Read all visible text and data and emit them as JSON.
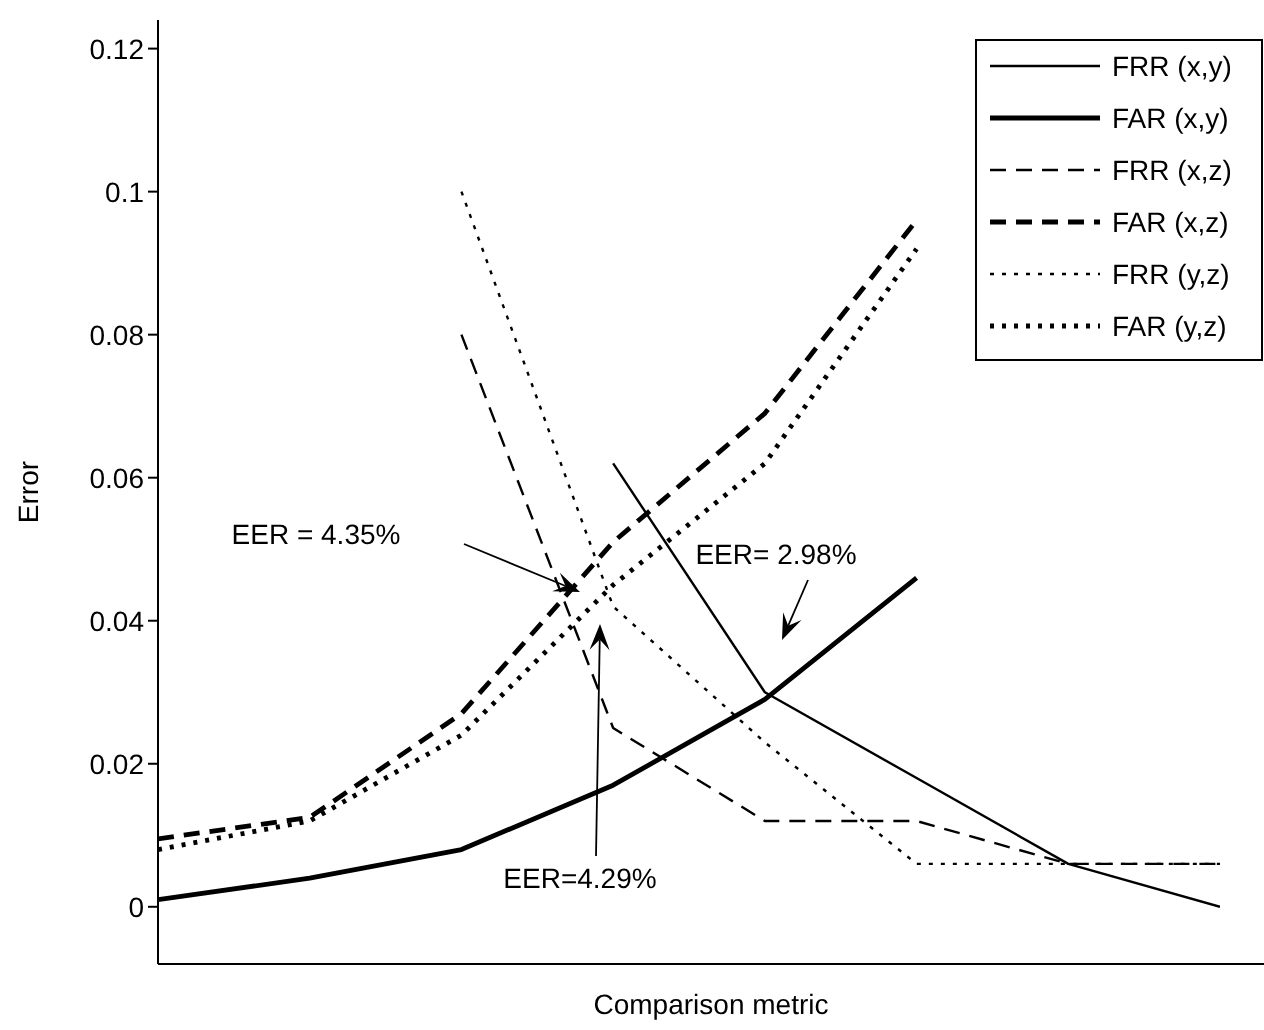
{
  "chart_data": {
    "type": "line",
    "xlabel": "Comparison metric",
    "ylabel": "Error",
    "categories": [
      null,
      null,
      null,
      null,
      null,
      null,
      null,
      null
    ],
    "ylim": [
      -0.008,
      0.124
    ],
    "yticks": [
      0,
      0.02,
      0.04,
      0.06,
      0.08,
      0.1,
      0.12
    ],
    "tick_labels": "y",
    "grid": false,
    "legend": "top right",
    "marker": "none",
    "series": [
      {
        "name": "FRR (x,y)",
        "color": "#000000",
        "line_style": "solid",
        "values": [
          null,
          null,
          null,
          0.062,
          0.03,
          0.018,
          0.006,
          0.0
        ]
      },
      {
        "name": "FAR (x,y)",
        "color": "#000000",
        "line_style": "solid",
        "values": [
          0.001,
          0.004,
          0.008,
          0.017,
          0.029,
          0.046,
          null,
          null
        ]
      },
      {
        "name": "FRR (x,z)",
        "color": "#000000",
        "line_style": "dashed",
        "values": [
          null,
          null,
          0.08,
          0.025,
          0.012,
          0.012,
          0.006,
          0.006
        ]
      },
      {
        "name": "FAR (x,z)",
        "color": "#000000",
        "line_style": "dashed",
        "values": [
          0.0095,
          0.0125,
          0.027,
          0.051,
          0.069,
          0.096,
          null,
          null
        ]
      },
      {
        "name": "FRR (y,z)",
        "color": "#000000",
        "line_style": "dotted",
        "values": [
          null,
          null,
          0.1,
          0.042,
          0.023,
          0.006,
          0.006,
          0.006
        ]
      },
      {
        "name": "FAR (y,z)",
        "color": "#000000",
        "line_style": "dotted",
        "values": [
          0.008,
          0.012,
          0.024,
          0.045,
          0.062,
          0.092,
          null,
          null
        ]
      }
    ],
    "annotations": [
      "EER = 4.35%",
      "EER=4.29%",
      "EER= 2.98%"
    ]
  }
}
